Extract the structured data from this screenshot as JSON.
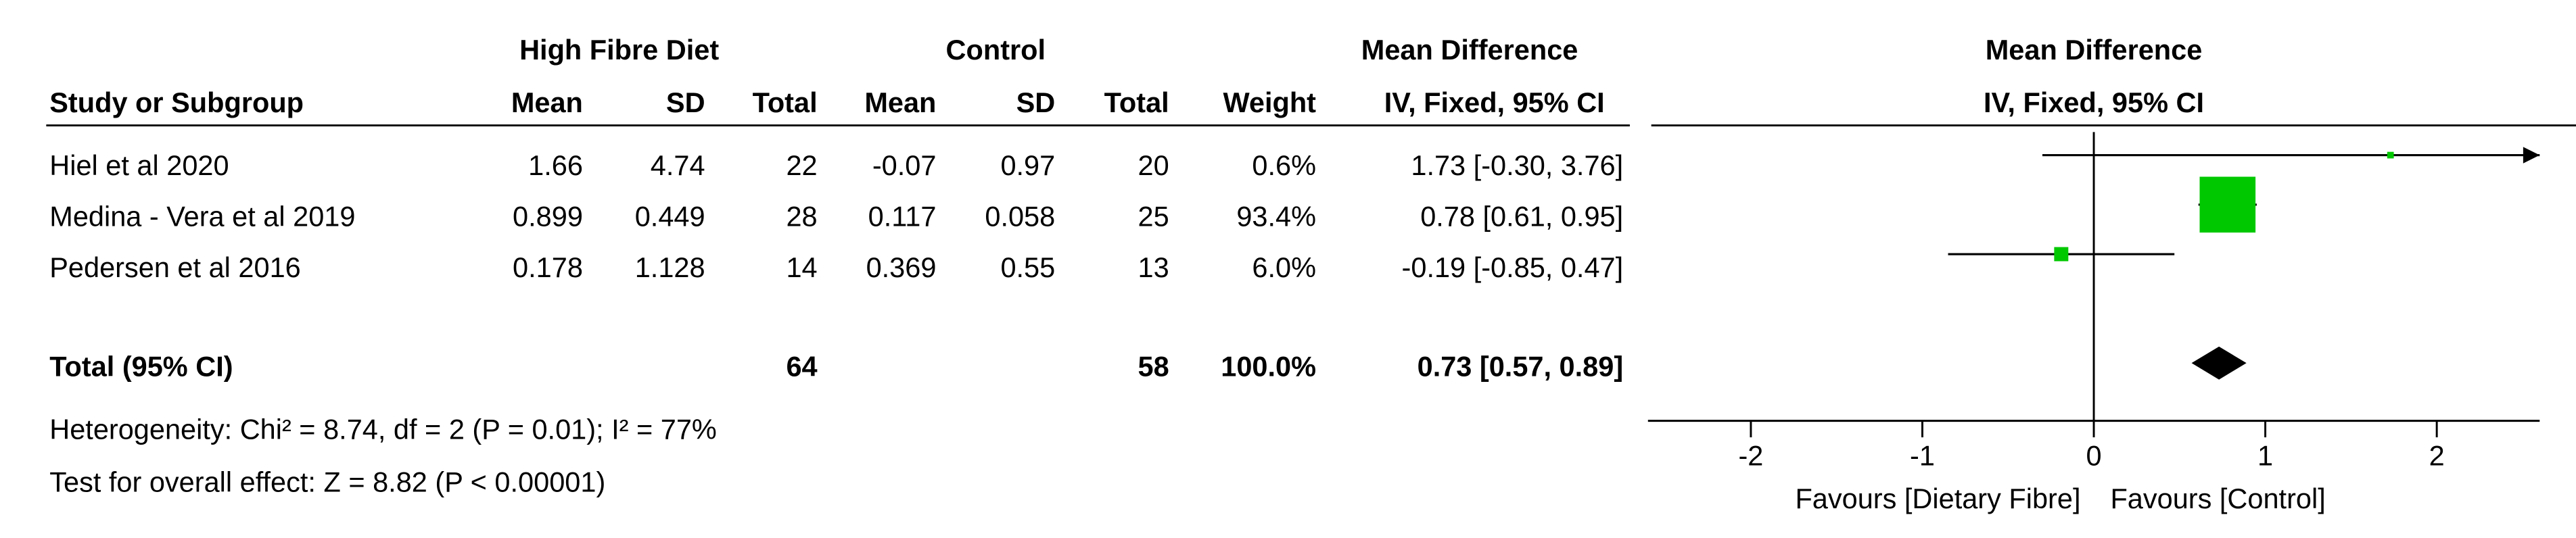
{
  "chart_data": {
    "type": "forest",
    "group_experimental": "High Fibre Diet",
    "group_control": "Control",
    "effect_header": "Mean Difference",
    "plot_title": "Mean Difference",
    "plot_subtitle": "IV, Fixed, 95% CI",
    "columns": [
      "Study or Subgroup",
      "Mean",
      "SD",
      "Total",
      "Mean",
      "SD",
      "Total",
      "Weight",
      "IV, Fixed, 95% CI"
    ],
    "studies": [
      {
        "name": "Hiel et al 2020",
        "exp_mean": 1.66,
        "exp_sd": 4.74,
        "exp_total": 22,
        "ctrl_mean": -0.07,
        "ctrl_sd": 0.97,
        "ctrl_total": 20,
        "weight": 0.6,
        "weight_label": "0.6%",
        "md": 1.73,
        "ci_low": -0.3,
        "ci_high": 3.76,
        "ci_label": "1.73 [-0.30, 3.76]"
      },
      {
        "name": "Medina - Vera et al 2019",
        "exp_mean": 0.899,
        "exp_sd": 0.449,
        "exp_total": 28,
        "ctrl_mean": 0.117,
        "ctrl_sd": 0.058,
        "ctrl_total": 25,
        "weight": 93.4,
        "weight_label": "93.4%",
        "md": 0.78,
        "ci_low": 0.61,
        "ci_high": 0.95,
        "ci_label": "0.78 [0.61, 0.95]"
      },
      {
        "name": "Pedersen et al 2016",
        "exp_mean": 0.178,
        "exp_sd": 1.128,
        "exp_total": 14,
        "ctrl_mean": 0.369,
        "ctrl_sd": 0.55,
        "ctrl_total": 13,
        "weight": 6.0,
        "weight_label": "6.0%",
        "md": -0.19,
        "ci_low": -0.85,
        "ci_high": 0.47,
        "ci_label": "-0.19 [-0.85, 0.47]"
      }
    ],
    "total": {
      "name": "Total (95% CI)",
      "exp_total": 64,
      "ctrl_total": 58,
      "weight": 100.0,
      "weight_label": "100.0%",
      "md": 0.73,
      "ci_low": 0.57,
      "ci_high": 0.89,
      "ci_label": "0.73 [0.57, 0.89]"
    },
    "heterogeneity": "Heterogeneity: Chi² = 8.74, df = 2 (P = 0.01); I² = 77%",
    "overall_effect": "Test for overall effect: Z = 8.82 (P < 0.00001)",
    "favours_left": "Favours [Dietary Fibre]",
    "favours_right": "Favours [Control]",
    "xlim": [
      -2.6,
      2.6
    ],
    "xticks": [
      -2,
      -1,
      0,
      1,
      2
    ],
    "square_color": "#00c800",
    "diamond_color": "#000000"
  }
}
